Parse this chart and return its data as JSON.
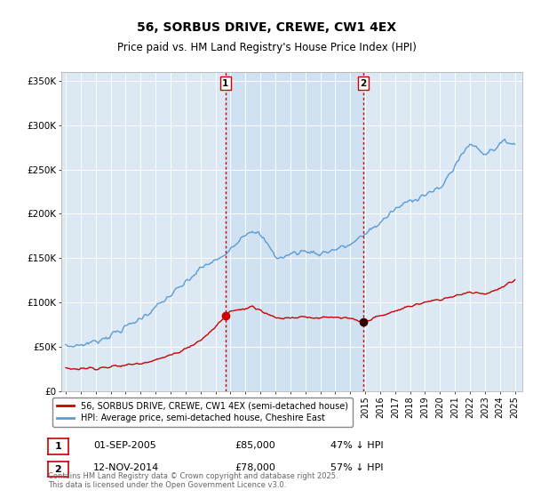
{
  "title": "56, SORBUS DRIVE, CREWE, CW1 4EX",
  "subtitle": "Price paid vs. HM Land Registry's House Price Index (HPI)",
  "ylabel_ticks": [
    "£0",
    "£50K",
    "£100K",
    "£150K",
    "£200K",
    "£250K",
    "£300K",
    "£350K"
  ],
  "ytick_values": [
    0,
    50000,
    100000,
    150000,
    200000,
    250000,
    300000,
    350000
  ],
  "ylim": [
    0,
    360000
  ],
  "xlim_start": 1994.7,
  "xlim_end": 2025.5,
  "background_color": "#dce9f5",
  "shade_color": "#cce0f0",
  "hpi_color": "#5b9bd5",
  "price_color": "#cc0000",
  "vline_color": "#cc0000",
  "marker1_x": 2005.67,
  "marker2_x": 2014.87,
  "marker1_label": "1",
  "marker2_label": "2",
  "sale1_date": "01-SEP-2005",
  "sale1_price": "£85,000",
  "sale1_hpi": "47% ↓ HPI",
  "sale1_price_val": 85000,
  "sale2_date": "12-NOV-2014",
  "sale2_price": "£78,000",
  "sale2_hpi": "57% ↓ HPI",
  "sale2_price_val": 78000,
  "legend_line1": "56, SORBUS DRIVE, CREWE, CW1 4EX (semi-detached house)",
  "legend_line2": "HPI: Average price, semi-detached house, Cheshire East",
  "footer": "Contains HM Land Registry data © Crown copyright and database right 2025.\nThis data is licensed under the Open Government Licence v3.0.",
  "xtick_years": [
    1995,
    1996,
    1997,
    1998,
    1999,
    2000,
    2001,
    2002,
    2003,
    2004,
    2005,
    2006,
    2007,
    2008,
    2009,
    2010,
    2011,
    2012,
    2013,
    2014,
    2015,
    2016,
    2017,
    2018,
    2019,
    2020,
    2021,
    2022,
    2023,
    2024,
    2025
  ]
}
